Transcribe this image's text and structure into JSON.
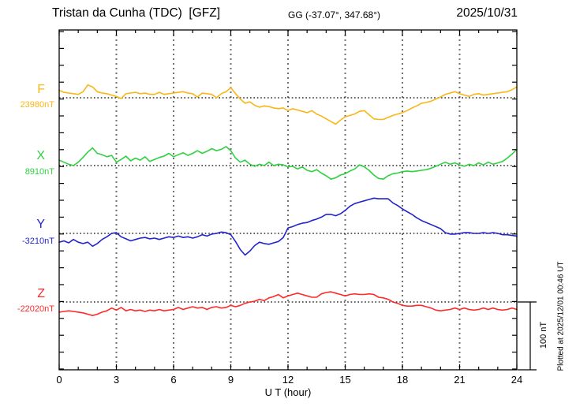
{
  "chart_data": {
    "type": "line",
    "title": "Tristan da Cunha (TDC)  [GFZ]",
    "subtitle": "GG (-37.07°, 347.68°)",
    "date": "2025/10/31",
    "xlabel": "U T (hour)",
    "plotted_at": "Plotted at 2025/12/01 00:46 UT",
    "x_range": [
      0,
      24
    ],
    "x_ticks": [
      0,
      3,
      6,
      9,
      12,
      15,
      18,
      21,
      24
    ],
    "x_minor_tick_hours": 1,
    "y_tick_interval_nT": 25,
    "grid": "dotted vertical lines every 3 hours, dotted horizontal baseline per component",
    "legend_position": "left margin component labels",
    "scale_bar": {
      "label": "100 nT",
      "nT": 100
    },
    "x_step_hours": 0.25,
    "series": [
      {
        "name": "F",
        "baseline_label": "23980nT",
        "baseline_nT": 23980,
        "color": "#f9b616",
        "deviation_nT_from_baseline": [
          11,
          8,
          7,
          6,
          5,
          9,
          19,
          16,
          9,
          7,
          6,
          4,
          2,
          -1,
          6,
          7,
          8,
          6,
          7,
          5,
          5,
          8,
          5,
          6,
          7,
          8,
          9,
          7,
          6,
          1,
          7,
          6,
          5,
          0,
          6,
          9,
          15,
          6,
          -2,
          -8,
          -6,
          -11,
          -14,
          -12,
          -13,
          -15,
          -16,
          -15,
          -19,
          -16,
          -18,
          -20,
          -22,
          -19,
          -24,
          -27,
          -31,
          -35,
          -39,
          -33,
          -28,
          -26,
          -24,
          -20,
          -19,
          -25,
          -31,
          -32,
          -32,
          -29,
          -26,
          -24,
          -22,
          -19,
          -15,
          -12,
          -8,
          -7,
          -5,
          -2,
          1,
          5,
          7,
          9,
          6,
          4,
          2,
          5,
          6,
          4,
          5,
          6,
          7,
          8,
          9,
          12,
          16
        ]
      },
      {
        "name": "X",
        "baseline_label": "8910nT",
        "baseline_nT": 8910,
        "color": "#2fd141",
        "deviation_nT_from_baseline": [
          8,
          5,
          2,
          0,
          5,
          12,
          20,
          26,
          18,
          16,
          13,
          15,
          5,
          9,
          14,
          7,
          11,
          8,
          13,
          6,
          9,
          12,
          14,
          18,
          13,
          16,
          19,
          15,
          18,
          22,
          18,
          21,
          25,
          22,
          24,
          28,
          22,
          11,
          5,
          8,
          2,
          -1,
          2,
          0,
          5,
          0,
          2,
          1,
          -2,
          -1,
          -5,
          -2,
          -7,
          -9,
          -6,
          -11,
          -15,
          -20,
          -18,
          -14,
          -12,
          -8,
          -5,
          1,
          -2,
          -7,
          -14,
          -19,
          -20,
          -15,
          -12,
          -11,
          -9,
          -8,
          -9,
          -8,
          -7,
          -6,
          -4,
          -1,
          2,
          5,
          2,
          4,
          1,
          -1,
          2,
          0,
          4,
          1,
          5,
          2,
          4,
          6,
          11,
          17,
          24
        ]
      },
      {
        "name": "Y",
        "baseline_label": "-3210nT",
        "baseline_nT": -3210,
        "color": "#2424cd",
        "deviation_nT_from_baseline": [
          -13,
          -11,
          -14,
          -9,
          -13,
          -15,
          -13,
          -19,
          -15,
          -9,
          -5,
          0,
          1,
          -5,
          -8,
          -11,
          -9,
          -7,
          -6,
          -8,
          -7,
          -9,
          -7,
          -5,
          -6,
          -4,
          -6,
          -5,
          -7,
          -5,
          -2,
          -4,
          -1,
          0,
          2,
          1,
          -2,
          -12,
          -24,
          -32,
          -26,
          -18,
          -13,
          -15,
          -16,
          -14,
          -12,
          -6,
          8,
          10,
          13,
          15,
          16,
          19,
          21,
          24,
          28,
          28,
          26,
          29,
          34,
          40,
          44,
          46,
          48,
          50,
          52,
          51,
          51,
          51,
          45,
          41,
          36,
          32,
          28,
          23,
          19,
          16,
          13,
          10,
          7,
          1,
          -1,
          -1,
          0,
          1,
          1,
          0,
          0,
          1,
          0,
          1,
          0,
          -2,
          -2,
          -3,
          -4
        ]
      },
      {
        "name": "Z",
        "baseline_label": "-22020nT",
        "baseline_nT": -22020,
        "color": "#ff2a2a",
        "deviation_nT_from_baseline": [
          -15,
          -14,
          -13,
          -14,
          -15,
          -16,
          -18,
          -20,
          -18,
          -15,
          -13,
          -9,
          -12,
          -8,
          -13,
          -11,
          -13,
          -12,
          -14,
          -12,
          -13,
          -11,
          -13,
          -12,
          -11,
          -8,
          -11,
          -9,
          -7,
          -9,
          -8,
          -11,
          -8,
          -7,
          -9,
          -8,
          -5,
          -7,
          -5,
          -2,
          0,
          1,
          4,
          2,
          6,
          8,
          11,
          6,
          9,
          11,
          13,
          11,
          9,
          7,
          7,
          12,
          14,
          15,
          13,
          11,
          9,
          11,
          12,
          11,
          11,
          12,
          11,
          7,
          6,
          4,
          0,
          -2,
          -5,
          -6,
          -6,
          -5,
          -5,
          -7,
          -9,
          -12,
          -13,
          -12,
          -11,
          -9,
          -11,
          -9,
          -11,
          -12,
          -11,
          -9,
          -11,
          -9,
          -11,
          -12,
          -11,
          -9,
          -11
        ]
      }
    ]
  }
}
